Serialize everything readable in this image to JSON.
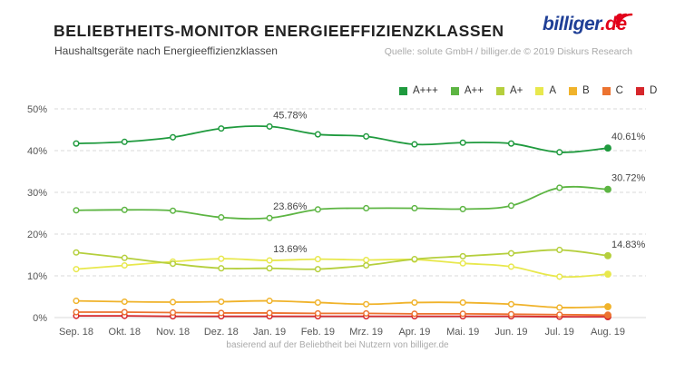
{
  "header": {
    "title": "BELIEBTHEITS-MONITOR ENERGIEEFFIZIENZKLASSEN",
    "subtitle": "Haushaltsgeräte nach Energieeffizienzklassen",
    "source": "Quelle: solute GmbH / billiger.de © 2019 Diskurs Research"
  },
  "logo": {
    "main": "billiger",
    "tld": ".de"
  },
  "footer": {
    "note": "basierend auf der Beliebtheit bei Nutzern von billiger.de"
  },
  "chart_data": {
    "type": "line",
    "title": "BELIEBTHEITS-MONITOR ENERGIEEFFIZIENZKLASSEN",
    "xlabel": "",
    "ylabel": "",
    "ylim": [
      0,
      50
    ],
    "yticks": [
      0,
      10,
      20,
      30,
      40,
      50
    ],
    "ytick_labels": [
      "0%",
      "10%",
      "20%",
      "30%",
      "40%",
      "50%"
    ],
    "grid": true,
    "legend": "top-right",
    "categories": [
      "Sep. 18",
      "Okt. 18",
      "Nov. 18",
      "Dez. 18",
      "Jan. 19",
      "Feb. 19",
      "Mrz. 19",
      "Apr. 19",
      "Mai. 19",
      "Jun. 19",
      "Jul. 19",
      "Aug. 19"
    ],
    "series": [
      {
        "name": "A+++",
        "color": "#1f9a3e",
        "values": [
          41.7,
          42.1,
          43.2,
          45.3,
          45.78,
          43.9,
          43.4,
          41.5,
          41.9,
          41.7,
          39.6,
          40.61
        ]
      },
      {
        "name": "A++",
        "color": "#5db543",
        "values": [
          25.7,
          25.8,
          25.6,
          24.0,
          23.86,
          25.9,
          26.2,
          26.2,
          26.0,
          26.8,
          31.1,
          30.72
        ]
      },
      {
        "name": "A+",
        "color": "#b5cf3d",
        "values": [
          15.6,
          14.3,
          12.9,
          11.8,
          11.8,
          11.6,
          12.5,
          14.0,
          14.7,
          15.4,
          16.2,
          14.83
        ]
      },
      {
        "name": "A",
        "color": "#e8e84d",
        "values": [
          11.6,
          12.5,
          13.4,
          14.1,
          13.69,
          14.0,
          13.8,
          13.9,
          13.0,
          12.2,
          9.8,
          10.4
        ]
      },
      {
        "name": "B",
        "color": "#f0b32b",
        "values": [
          4.0,
          3.8,
          3.7,
          3.8,
          4.0,
          3.6,
          3.2,
          3.6,
          3.6,
          3.2,
          2.4,
          2.6
        ]
      },
      {
        "name": "C",
        "color": "#ec7330",
        "values": [
          1.3,
          1.3,
          1.2,
          1.1,
          1.1,
          1.0,
          1.0,
          0.9,
          0.9,
          0.8,
          0.7,
          0.6
        ]
      },
      {
        "name": "D",
        "color": "#d6262b",
        "values": [
          0.4,
          0.4,
          0.3,
          0.3,
          0.3,
          0.3,
          0.3,
          0.3,
          0.3,
          0.3,
          0.2,
          0.2
        ]
      }
    ],
    "annotations": [
      {
        "series": "A+++",
        "index": 4,
        "text": "45.78%"
      },
      {
        "series": "A+++",
        "index": 11,
        "text": "40.61%"
      },
      {
        "series": "A++",
        "index": 4,
        "text": "23.86%"
      },
      {
        "series": "A++",
        "index": 11,
        "text": "30.72%"
      },
      {
        "series": "A",
        "index": 4,
        "text": "13.69%"
      },
      {
        "series": "A+",
        "index": 11,
        "text": "14.83%"
      }
    ]
  }
}
